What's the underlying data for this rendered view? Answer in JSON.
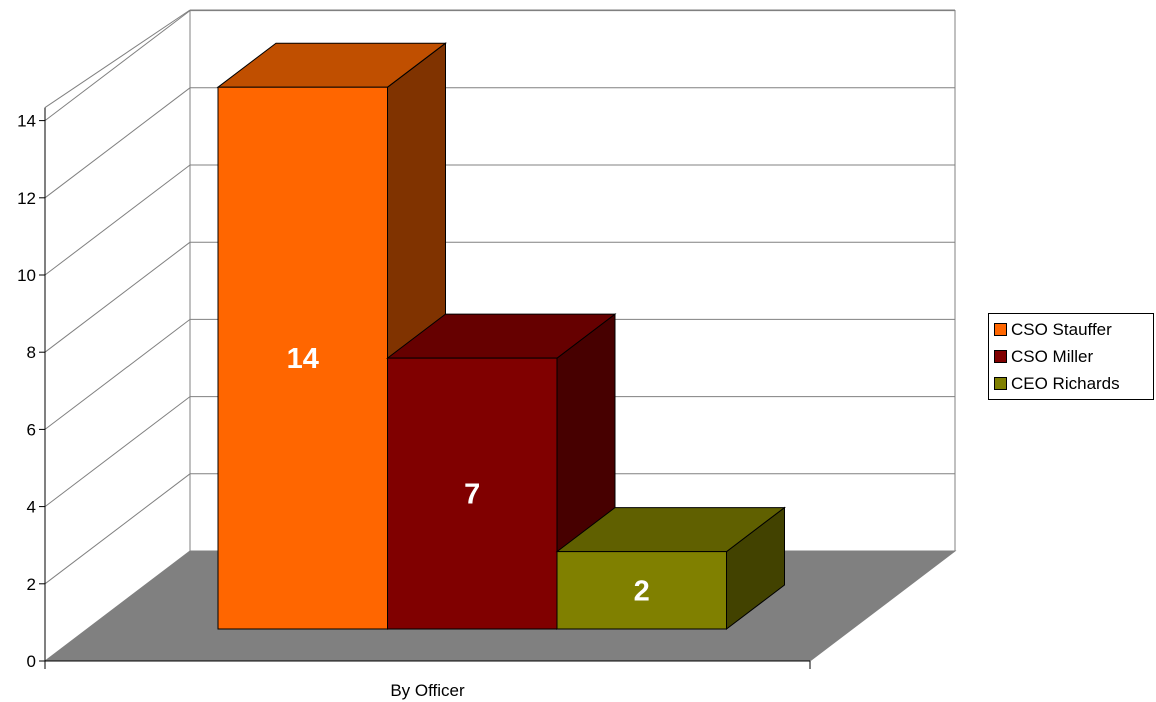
{
  "chart_data": {
    "type": "bar",
    "style": "3d-column",
    "categories": [
      "By Officer"
    ],
    "series": [
      {
        "name": "CSO Stauffer",
        "values": [
          14
        ],
        "color": "#ff6600",
        "top_color": "#c04f00",
        "side_color": "#803300"
      },
      {
        "name": "CSO Miller",
        "values": [
          7
        ],
        "color": "#800000",
        "top_color": "#660000",
        "side_color": "#470000"
      },
      {
        "name": "CEO Richards",
        "values": [
          2
        ],
        "color": "#808000",
        "top_color": "#606000",
        "side_color": "#424200"
      }
    ],
    "title": "",
    "xlabel": "",
    "ylabel": "",
    "ylim": [
      0,
      14
    ],
    "yticks": [
      0,
      2,
      4,
      6,
      8,
      10,
      12,
      14
    ],
    "grid": true,
    "legend": "right",
    "floor_color": "#808080",
    "data_labels": true
  }
}
